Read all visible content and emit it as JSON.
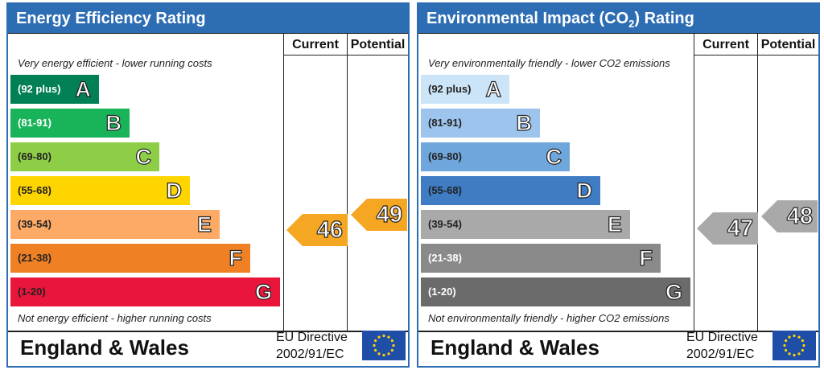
{
  "chart_data": [
    {
      "type": "bar",
      "title": "Energy Efficiency Rating",
      "columns": [
        "Current",
        "Potential"
      ],
      "top_caption": "Very energy efficient - lower running costs",
      "bottom_caption": "Not energy efficient - higher running costs",
      "bands": [
        {
          "range": "(92 plus)",
          "letter": "A",
          "color": "#008054",
          "text_color": "#ffffff"
        },
        {
          "range": "(81-91)",
          "letter": "B",
          "color": "#19b459",
          "text_color": "#ffffff"
        },
        {
          "range": "(69-80)",
          "letter": "C",
          "color": "#8dce46",
          "text_color": "#222222"
        },
        {
          "range": "(55-68)",
          "letter": "D",
          "color": "#ffd500",
          "text_color": "#222222"
        },
        {
          "range": "(39-54)",
          "letter": "E",
          "color": "#fcaa65",
          "text_color": "#222222"
        },
        {
          "range": "(21-38)",
          "letter": "F",
          "color": "#ef8023",
          "text_color": "#222222"
        },
        {
          "range": "(1-20)",
          "letter": "G",
          "color": "#e9153b",
          "text_color": "#222222"
        }
      ],
      "current": {
        "value": 46,
        "band": "E",
        "color": "#f5a623"
      },
      "potential": {
        "value": 49,
        "band": "E",
        "color": "#f5a623"
      },
      "region": "England & Wales",
      "directive": [
        "EU Directive",
        "2002/91/EC"
      ]
    },
    {
      "type": "bar",
      "title_parts": [
        "Environmental Impact (CO",
        "2",
        ") Rating"
      ],
      "columns": [
        "Current",
        "Potential"
      ],
      "top_caption": "Very environmentally friendly - lower CO2 emissions",
      "bottom_caption": "Not environmentally friendly - higher CO2 emissions",
      "bands": [
        {
          "range": "(92 plus)",
          "letter": "A",
          "color": "#cce4f7",
          "text_color": "#222222"
        },
        {
          "range": "(81-91)",
          "letter": "B",
          "color": "#9cc4ec",
          "text_color": "#222222"
        },
        {
          "range": "(69-80)",
          "letter": "C",
          "color": "#6fa6dc",
          "text_color": "#222222"
        },
        {
          "range": "(55-68)",
          "letter": "D",
          "color": "#3f7cc3",
          "text_color": "#222222"
        },
        {
          "range": "(39-54)",
          "letter": "E",
          "color": "#a9a9a9",
          "text_color": "#222222"
        },
        {
          "range": "(21-38)",
          "letter": "F",
          "color": "#8a8a8a",
          "text_color": "#ffffff"
        },
        {
          "range": "(1-20)",
          "letter": "G",
          "color": "#6b6b6b",
          "text_color": "#ffffff"
        }
      ],
      "current": {
        "value": 47,
        "band": "E",
        "color": "#a9a9a9"
      },
      "potential": {
        "value": 48,
        "band": "E",
        "color": "#a9a9a9"
      },
      "region": "England & Wales",
      "directive": [
        "EU Directive",
        "2002/91/EC"
      ]
    }
  ]
}
